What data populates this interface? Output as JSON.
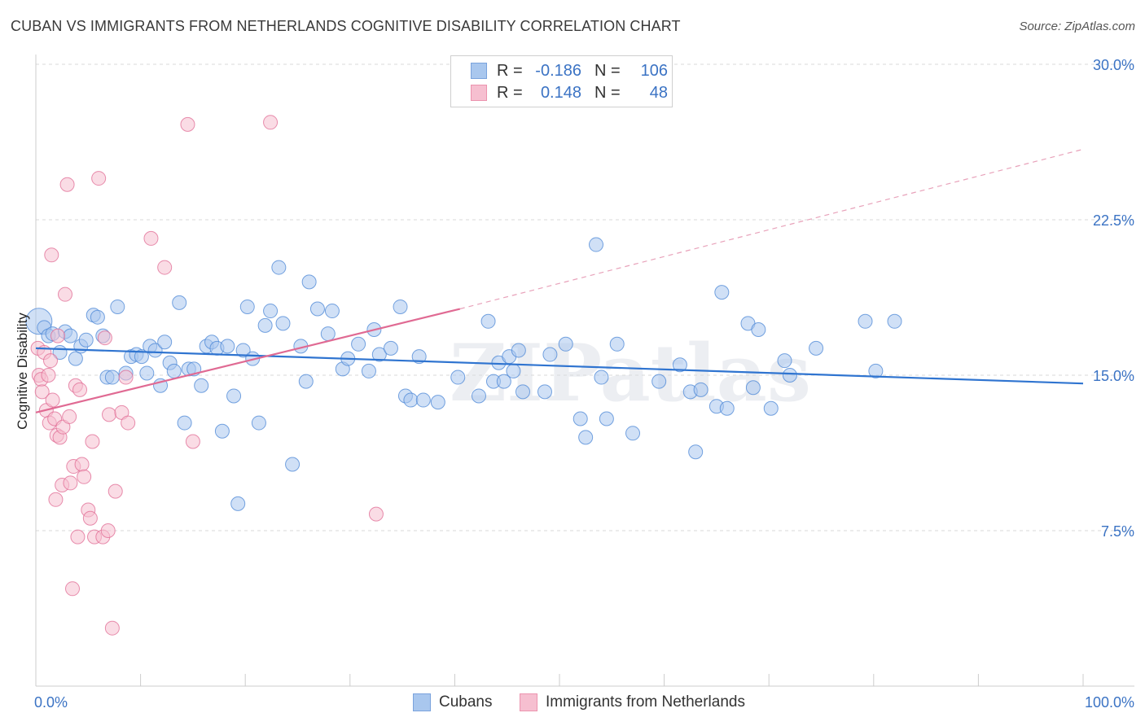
{
  "title": "CUBAN VS IMMIGRANTS FROM NETHERLANDS COGNITIVE DISABILITY CORRELATION CHART",
  "source": "Source: ZipAtlas.com",
  "watermark": "ZIPatlas",
  "legend": {
    "rows": [
      {
        "r_label": "R =",
        "r_value": "-0.186",
        "n_label": "N =",
        "n_value": "106",
        "color": "#a9c7ee",
        "border": "#7aa3dd"
      },
      {
        "r_label": "R =",
        "r_value": "0.148",
        "n_label": "N =",
        "n_value": "48",
        "color": "#f6bfd0",
        "border": "#ec93ae"
      }
    ]
  },
  "bottom_legend": [
    {
      "label": "Cubans",
      "color": "#a9c7ee",
      "border": "#7aa3dd"
    },
    {
      "label": "Immigrants from Netherlands",
      "color": "#f6bfd0",
      "border": "#ec93ae"
    }
  ],
  "chart_data": {
    "type": "scatter",
    "xlabel": "",
    "ylabel": "Cognitive Disability",
    "xlim": [
      0,
      100
    ],
    "ylim": [
      0,
      30
    ],
    "x_tick_labels": [
      "0.0%",
      "100.0%"
    ],
    "y_ticks": [
      7.5,
      15.0,
      22.5,
      30.0
    ],
    "y_tick_labels": [
      "7.5%",
      "15.0%",
      "22.5%",
      "30.0%"
    ],
    "grid": "horizontal dashed",
    "series": [
      {
        "name": "Cubans",
        "color": "#4a86d6",
        "fill": "#a9c7ee",
        "trend": {
          "x0": 0,
          "y0": 16.3,
          "x1": 100,
          "y1": 14.6,
          "style": "solid"
        },
        "points": [
          [
            0.3,
            17.6
          ],
          [
            0.8,
            17.3
          ],
          [
            1.2,
            16.9
          ],
          [
            1.6,
            17.0
          ],
          [
            2.3,
            16.1
          ],
          [
            2.8,
            17.1
          ],
          [
            3.3,
            16.9
          ],
          [
            3.8,
            15.8
          ],
          [
            4.3,
            16.4
          ],
          [
            4.8,
            16.7
          ],
          [
            5.5,
            17.9
          ],
          [
            5.9,
            17.8
          ],
          [
            6.4,
            16.9
          ],
          [
            6.8,
            14.9
          ],
          [
            7.3,
            14.9
          ],
          [
            7.8,
            18.3
          ],
          [
            8.6,
            15.1
          ],
          [
            9.1,
            15.9
          ],
          [
            9.6,
            16.0
          ],
          [
            10.1,
            15.9
          ],
          [
            10.6,
            15.1
          ],
          [
            10.9,
            16.4
          ],
          [
            11.4,
            16.2
          ],
          [
            11.9,
            14.5
          ],
          [
            12.3,
            16.6
          ],
          [
            12.8,
            15.6
          ],
          [
            13.2,
            15.2
          ],
          [
            13.7,
            18.5
          ],
          [
            14.2,
            12.7
          ],
          [
            14.6,
            15.3
          ],
          [
            15.1,
            15.3
          ],
          [
            15.8,
            14.5
          ],
          [
            16.3,
            16.4
          ],
          [
            16.8,
            16.6
          ],
          [
            17.3,
            16.3
          ],
          [
            17.8,
            12.3
          ],
          [
            18.3,
            16.4
          ],
          [
            18.9,
            14.0
          ],
          [
            19.3,
            8.8
          ],
          [
            19.8,
            16.2
          ],
          [
            20.2,
            18.3
          ],
          [
            20.7,
            15.8
          ],
          [
            21.3,
            12.7
          ],
          [
            21.9,
            17.4
          ],
          [
            22.4,
            18.1
          ],
          [
            23.2,
            20.2
          ],
          [
            23.6,
            17.5
          ],
          [
            24.5,
            10.7
          ],
          [
            25.3,
            16.4
          ],
          [
            25.8,
            14.7
          ],
          [
            26.1,
            19.5
          ],
          [
            26.9,
            18.2
          ],
          [
            27.9,
            17.0
          ],
          [
            28.3,
            18.1
          ],
          [
            29.3,
            15.3
          ],
          [
            29.8,
            15.8
          ],
          [
            30.8,
            16.5
          ],
          [
            31.8,
            15.2
          ],
          [
            32.3,
            17.2
          ],
          [
            32.8,
            16.0
          ],
          [
            33.9,
            16.3
          ],
          [
            34.8,
            18.3
          ],
          [
            35.3,
            14.0
          ],
          [
            35.8,
            13.8
          ],
          [
            36.6,
            15.9
          ],
          [
            37.0,
            13.8
          ],
          [
            38.4,
            13.7
          ],
          [
            40.3,
            14.9
          ],
          [
            42.3,
            14.0
          ],
          [
            43.2,
            17.6
          ],
          [
            43.7,
            14.7
          ],
          [
            44.2,
            15.6
          ],
          [
            44.7,
            14.7
          ],
          [
            45.2,
            15.9
          ],
          [
            45.6,
            15.2
          ],
          [
            46.1,
            16.2
          ],
          [
            46.5,
            14.2
          ],
          [
            48.6,
            14.2
          ],
          [
            49.1,
            16.0
          ],
          [
            50.6,
            16.5
          ],
          [
            52.0,
            12.9
          ],
          [
            52.5,
            12.0
          ],
          [
            53.5,
            21.3
          ],
          [
            54.0,
            14.9
          ],
          [
            54.5,
            12.9
          ],
          [
            55.5,
            16.5
          ],
          [
            57.0,
            12.2
          ],
          [
            59.5,
            14.7
          ],
          [
            61.5,
            15.5
          ],
          [
            62.5,
            14.2
          ],
          [
            63.0,
            11.3
          ],
          [
            63.5,
            14.3
          ],
          [
            65.0,
            13.5
          ],
          [
            65.5,
            19.0
          ],
          [
            66.0,
            13.4
          ],
          [
            68.0,
            17.5
          ],
          [
            68.5,
            14.4
          ],
          [
            69.0,
            17.2
          ],
          [
            70.2,
            13.4
          ],
          [
            71.5,
            15.7
          ],
          [
            72.0,
            15.0
          ],
          [
            74.5,
            16.3
          ],
          [
            79.2,
            17.6
          ],
          [
            80.2,
            15.2
          ],
          [
            82.0,
            17.6
          ]
        ]
      },
      {
        "name": "Immigrants from Netherlands",
        "color": "#e06a93",
        "fill": "#f6bfd0",
        "trend": {
          "x0": 0,
          "y0": 13.2,
          "x1": 40.5,
          "y1": 18.2,
          "x_ext": 100,
          "y_ext": 25.9,
          "style": "solid+dashed"
        },
        "points": [
          [
            0.2,
            16.3
          ],
          [
            0.3,
            15.0
          ],
          [
            0.5,
            14.8
          ],
          [
            0.6,
            14.2
          ],
          [
            0.8,
            16.1
          ],
          [
            1.0,
            13.3
          ],
          [
            1.2,
            15.0
          ],
          [
            1.3,
            12.7
          ],
          [
            1.4,
            15.7
          ],
          [
            1.5,
            20.8
          ],
          [
            1.6,
            13.8
          ],
          [
            1.8,
            12.9
          ],
          [
            1.9,
            9.0
          ],
          [
            2.0,
            12.1
          ],
          [
            2.1,
            16.9
          ],
          [
            2.3,
            12.0
          ],
          [
            2.5,
            9.7
          ],
          [
            2.6,
            12.5
          ],
          [
            2.8,
            18.9
          ],
          [
            3.0,
            24.2
          ],
          [
            3.2,
            13.0
          ],
          [
            3.3,
            9.8
          ],
          [
            3.5,
            4.7
          ],
          [
            3.6,
            10.6
          ],
          [
            3.8,
            14.5
          ],
          [
            4.0,
            7.2
          ],
          [
            4.2,
            14.3
          ],
          [
            4.4,
            10.7
          ],
          [
            4.6,
            10.1
          ],
          [
            5.0,
            8.5
          ],
          [
            5.2,
            8.1
          ],
          [
            5.4,
            11.8
          ],
          [
            5.6,
            7.2
          ],
          [
            6.0,
            24.5
          ],
          [
            6.4,
            7.2
          ],
          [
            6.6,
            16.8
          ],
          [
            6.9,
            7.5
          ],
          [
            7.0,
            13.1
          ],
          [
            7.3,
            2.8
          ],
          [
            7.6,
            9.4
          ],
          [
            8.2,
            13.2
          ],
          [
            8.6,
            14.9
          ],
          [
            8.8,
            12.7
          ],
          [
            11.0,
            21.6
          ],
          [
            12.3,
            20.2
          ],
          [
            14.5,
            27.1
          ],
          [
            15.0,
            11.8
          ],
          [
            22.4,
            27.2
          ],
          [
            32.5,
            8.3
          ]
        ]
      }
    ]
  }
}
